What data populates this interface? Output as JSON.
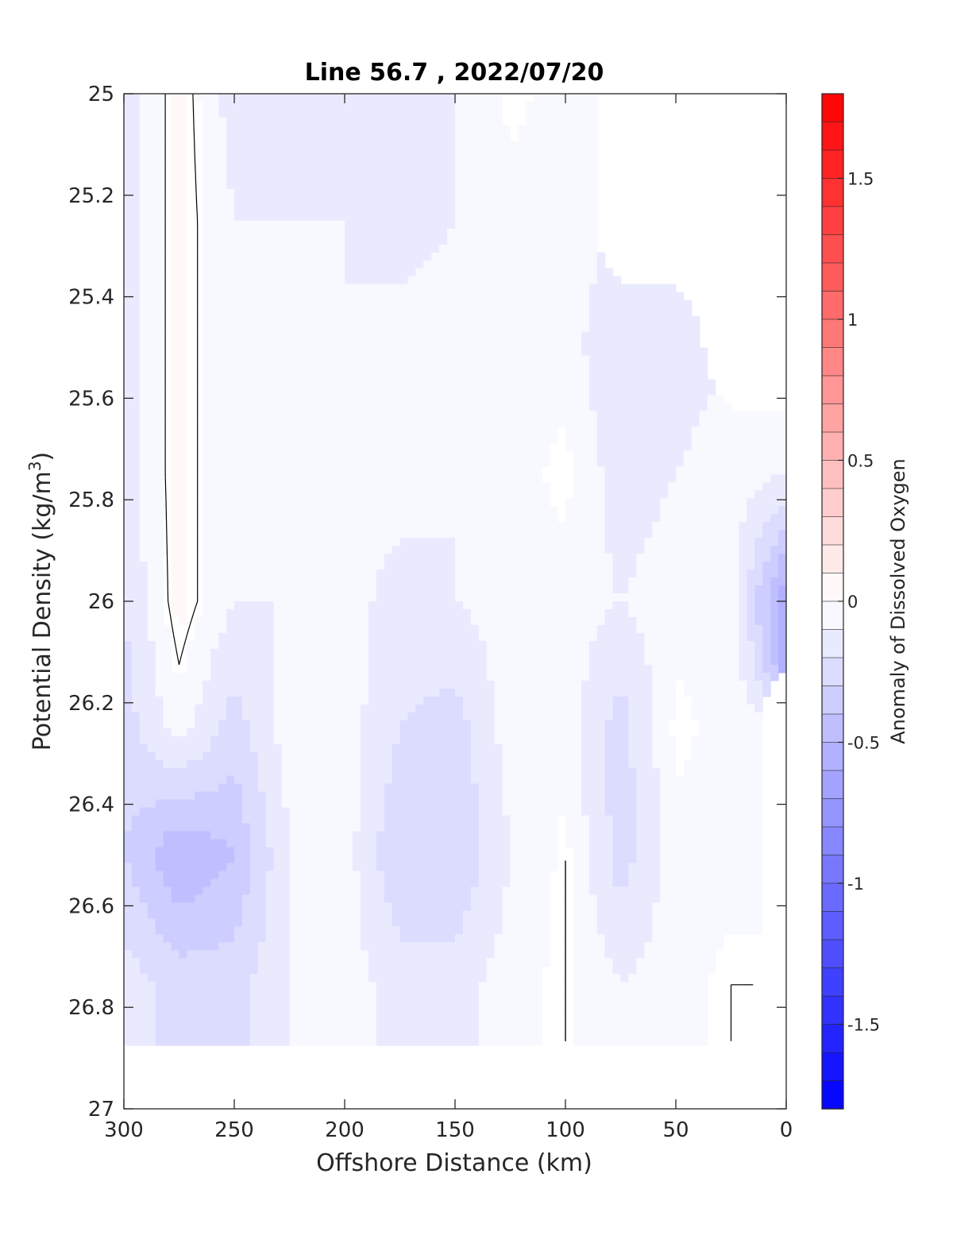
{
  "chart_data": {
    "type": "heatmap",
    "title": "Line 56.7 , 2022/07/20",
    "xlabel": "Offshore Distance (km)",
    "ylabel_main": "Potential Density (kg/m",
    "ylabel_sup": "3",
    "ylabel_close": ")",
    "colorbar_label": "Anomaly of Dissolved Oxygen",
    "x_axis": {
      "range": [
        300,
        0
      ],
      "reversed": true,
      "ticks": [
        300,
        250,
        200,
        150,
        100,
        50,
        0
      ],
      "tick_labels": [
        "300",
        "250",
        "200",
        "150",
        "100",
        "50",
        "0"
      ]
    },
    "y_axis": {
      "range": [
        25,
        27
      ],
      "reversed": true,
      "ticks": [
        25,
        25.2,
        25.4,
        25.6,
        25.8,
        26,
        26.2,
        26.4,
        26.6,
        26.8,
        27
      ],
      "tick_labels": [
        "25",
        "25.2",
        "25.4",
        "25.6",
        "25.8",
        "26",
        "26.2",
        "26.4",
        "26.6",
        "26.8",
        "27"
      ]
    },
    "colorbar": {
      "range": [
        -1.8,
        1.8
      ],
      "levels": 36,
      "ticks": [
        1.5,
        1,
        0.5,
        0,
        -0.5,
        -1,
        -1.5
      ],
      "tick_labels": [
        "1.5",
        "1",
        "0.5",
        "0",
        "-0.5",
        "-1",
        "-1.5"
      ],
      "low_color": "#0000ff",
      "zero_color": "#ffffff",
      "high_color": "#ff0000"
    },
    "x": [
      300,
      275,
      250,
      225,
      200,
      175,
      150,
      125,
      100,
      75,
      50,
      25,
      0
    ],
    "y": [
      25.0,
      25.25,
      25.5,
      25.75,
      26.0,
      26.25,
      26.5,
      26.75,
      27.0
    ],
    "z": [
      [
        -0.15,
        0.05,
        -0.15,
        -0.15,
        -0.1,
        -0.15,
        -0.1,
        0,
        -0.05,
        null,
        null,
        null,
        null
      ],
      [
        -0.15,
        0.05,
        -0.1,
        -0.1,
        -0.1,
        -0.15,
        -0.1,
        -0.05,
        -0.05,
        null,
        null,
        null,
        null
      ],
      [
        -0.15,
        0.05,
        -0.1,
        -0.05,
        -0.1,
        -0.05,
        -0.05,
        -0.05,
        -0.05,
        -0.2,
        -0.15,
        null,
        null
      ],
      [
        -0.15,
        0.05,
        -0.1,
        -0.1,
        -0.05,
        -0.05,
        -0.1,
        -0.05,
        0,
        -0.15,
        -0.1,
        -0.05,
        -0.1
      ],
      [
        -0.2,
        0.05,
        -0.1,
        -0.1,
        -0.05,
        -0.15,
        -0.1,
        -0.05,
        -0.05,
        -0.1,
        -0.05,
        -0.05,
        -0.6
      ],
      [
        -0.25,
        -0.05,
        -0.25,
        -0.05,
        -0.05,
        -0.2,
        -0.25,
        -0.05,
        -0.05,
        -0.25,
        0,
        -0.05,
        null
      ],
      [
        -0.3,
        -0.5,
        -0.4,
        -0.1,
        -0.05,
        -0.3,
        -0.3,
        -0.1,
        0,
        -0.25,
        -0.05,
        -0.05,
        null
      ],
      [
        -0.15,
        -0.25,
        -0.25,
        -0.1,
        -0.05,
        -0.15,
        -0.15,
        -0.05,
        0,
        -0.1,
        -0.05,
        0,
        null
      ],
      [
        null,
        null,
        null,
        null,
        null,
        null,
        null,
        null,
        null,
        null,
        null,
        null,
        null
      ]
    ],
    "contour_levels": [
      0
    ]
  }
}
